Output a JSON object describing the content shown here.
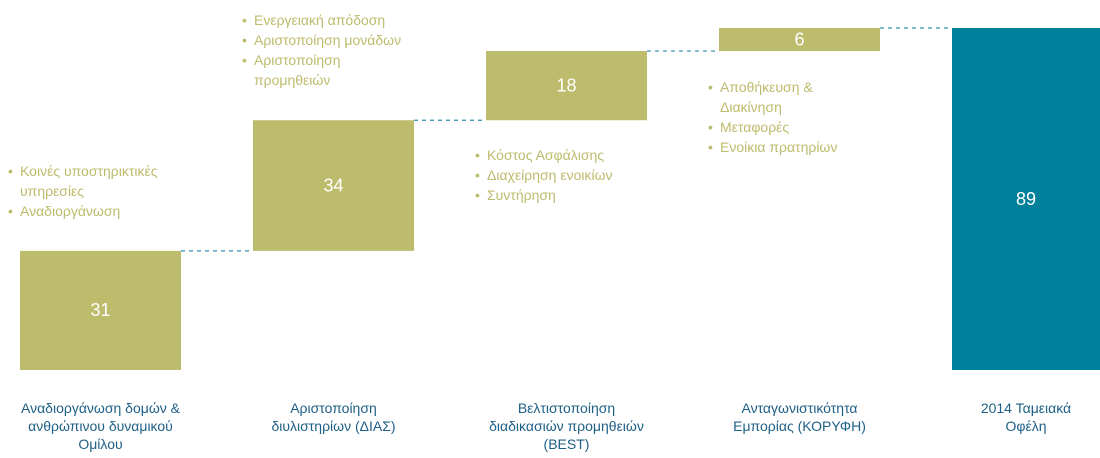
{
  "chart_data": {
    "type": "waterfall",
    "categories": [
      "Αναδιοργάνωση δομών & ανθρώπινου δυναμικού Ομίλου",
      "Αριστοποίηση διυλιστηρίων (ΔΙΑΣ)",
      "Βελτιστοποίηση διαδικασιών προμηθειών (BEST)",
      "Ανταγωνιστικότητα Εμπορίας (ΚΟΡΥΦΗ)",
      "2014 Ταμειακά Οφέλη"
    ],
    "values": [
      31,
      34,
      18,
      6,
      89
    ],
    "measure": [
      "relative",
      "relative",
      "relative",
      "relative",
      "total"
    ],
    "colors": [
      "#bdbb6c",
      "#bdbb6c",
      "#bdbb6c",
      "#bdbb6c",
      "#00809a"
    ],
    "connector_color": "#2f8db3",
    "ylim": [
      0,
      89
    ],
    "annotations": [
      [
        "Κοινές υποστηρικτικές υπηρεσίες",
        "Αναδιοργάνωση"
      ],
      [
        "Ενεργειακή απόδοση",
        "Αριστοποίηση μονάδων",
        "Αριστοποίηση προμηθειών"
      ],
      [
        "Κόστος Ασφάλισης",
        "Διαχείρηση ενοικίων",
        "Συντήρηση"
      ],
      [
        "Αποθήκευση & Διακίνηση",
        "Μεταφορές",
        "Ενοίκια πρατηρίων"
      ],
      []
    ]
  }
}
